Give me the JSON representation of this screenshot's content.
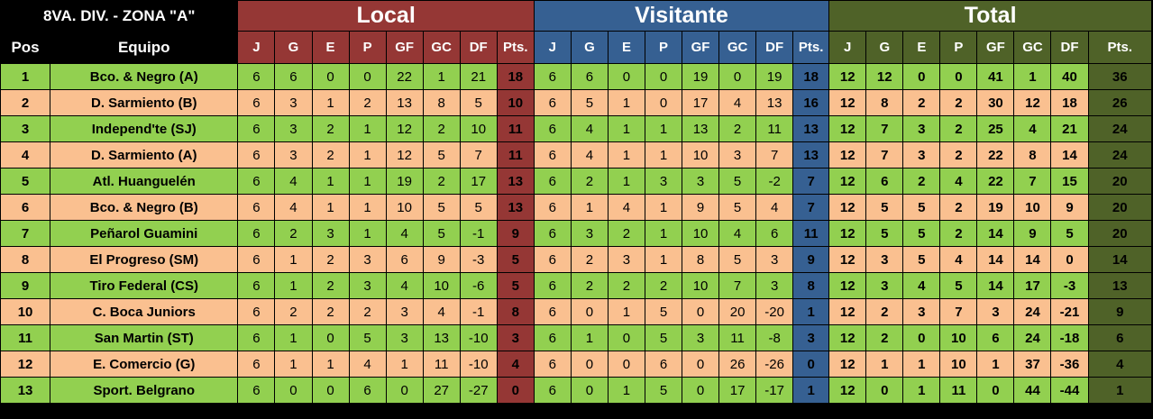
{
  "title": "8VA. DIV. - ZONA \"A\"",
  "groups": {
    "local": "Local",
    "visitante": "Visitante",
    "total": "Total"
  },
  "headers": {
    "pos": "Pos",
    "equipo": "Equipo",
    "stats": [
      "J",
      "G",
      "E",
      "P",
      "GF",
      "GC",
      "DF",
      "Pts."
    ]
  },
  "colors": {
    "local": "#953735",
    "visitante": "#366092",
    "total": "#4f6228",
    "row_green": "#92d050",
    "row_orange": "#fac090"
  },
  "rows": [
    {
      "pos": "1",
      "team": "Bco. & Negro (A)",
      "local": [
        "6",
        "6",
        "0",
        "0",
        "22",
        "1",
        "21",
        "18"
      ],
      "visitante": [
        "6",
        "6",
        "0",
        "0",
        "19",
        "0",
        "19",
        "18"
      ],
      "total": [
        "12",
        "12",
        "0",
        "0",
        "41",
        "1",
        "40",
        "36"
      ]
    },
    {
      "pos": "2",
      "team": "D. Sarmiento (B)",
      "local": [
        "6",
        "3",
        "1",
        "2",
        "13",
        "8",
        "5",
        "10"
      ],
      "visitante": [
        "6",
        "5",
        "1",
        "0",
        "17",
        "4",
        "13",
        "16"
      ],
      "total": [
        "12",
        "8",
        "2",
        "2",
        "30",
        "12",
        "18",
        "26"
      ]
    },
    {
      "pos": "3",
      "team": "Independ'te (SJ)",
      "local": [
        "6",
        "3",
        "2",
        "1",
        "12",
        "2",
        "10",
        "11"
      ],
      "visitante": [
        "6",
        "4",
        "1",
        "1",
        "13",
        "2",
        "11",
        "13"
      ],
      "total": [
        "12",
        "7",
        "3",
        "2",
        "25",
        "4",
        "21",
        "24"
      ]
    },
    {
      "pos": "4",
      "team": "D. Sarmiento (A)",
      "local": [
        "6",
        "3",
        "2",
        "1",
        "12",
        "5",
        "7",
        "11"
      ],
      "visitante": [
        "6",
        "4",
        "1",
        "1",
        "10",
        "3",
        "7",
        "13"
      ],
      "total": [
        "12",
        "7",
        "3",
        "2",
        "22",
        "8",
        "14",
        "24"
      ]
    },
    {
      "pos": "5",
      "team": "Atl. Huanguelén",
      "local": [
        "6",
        "4",
        "1",
        "1",
        "19",
        "2",
        "17",
        "13"
      ],
      "visitante": [
        "6",
        "2",
        "1",
        "3",
        "3",
        "5",
        "-2",
        "7"
      ],
      "total": [
        "12",
        "6",
        "2",
        "4",
        "22",
        "7",
        "15",
        "20"
      ]
    },
    {
      "pos": "6",
      "team": "Bco. & Negro (B)",
      "local": [
        "6",
        "4",
        "1",
        "1",
        "10",
        "5",
        "5",
        "13"
      ],
      "visitante": [
        "6",
        "1",
        "4",
        "1",
        "9",
        "5",
        "4",
        "7"
      ],
      "total": [
        "12",
        "5",
        "5",
        "2",
        "19",
        "10",
        "9",
        "20"
      ]
    },
    {
      "pos": "7",
      "team": "Peñarol Guamini",
      "local": [
        "6",
        "2",
        "3",
        "1",
        "4",
        "5",
        "-1",
        "9"
      ],
      "visitante": [
        "6",
        "3",
        "2",
        "1",
        "10",
        "4",
        "6",
        "11"
      ],
      "total": [
        "12",
        "5",
        "5",
        "2",
        "14",
        "9",
        "5",
        "20"
      ]
    },
    {
      "pos": "8",
      "team": "El Progreso (SM)",
      "local": [
        "6",
        "1",
        "2",
        "3",
        "6",
        "9",
        "-3",
        "5"
      ],
      "visitante": [
        "6",
        "2",
        "3",
        "1",
        "8",
        "5",
        "3",
        "9"
      ],
      "total": [
        "12",
        "3",
        "5",
        "4",
        "14",
        "14",
        "0",
        "14"
      ]
    },
    {
      "pos": "9",
      "team": "Tiro Federal (CS)",
      "local": [
        "6",
        "1",
        "2",
        "3",
        "4",
        "10",
        "-6",
        "5"
      ],
      "visitante": [
        "6",
        "2",
        "2",
        "2",
        "10",
        "7",
        "3",
        "8"
      ],
      "total": [
        "12",
        "3",
        "4",
        "5",
        "14",
        "17",
        "-3",
        "13"
      ]
    },
    {
      "pos": "10",
      "team": "C. Boca Juniors",
      "local": [
        "6",
        "2",
        "2",
        "2",
        "3",
        "4",
        "-1",
        "8"
      ],
      "visitante": [
        "6",
        "0",
        "1",
        "5",
        "0",
        "20",
        "-20",
        "1"
      ],
      "total": [
        "12",
        "2",
        "3",
        "7",
        "3",
        "24",
        "-21",
        "9"
      ]
    },
    {
      "pos": "11",
      "team": "San Martin (ST)",
      "local": [
        "6",
        "1",
        "0",
        "5",
        "3",
        "13",
        "-10",
        "3"
      ],
      "visitante": [
        "6",
        "1",
        "0",
        "5",
        "3",
        "11",
        "-8",
        "3"
      ],
      "total": [
        "12",
        "2",
        "0",
        "10",
        "6",
        "24",
        "-18",
        "6"
      ]
    },
    {
      "pos": "12",
      "team": "E. Comercio (G)",
      "local": [
        "6",
        "1",
        "1",
        "4",
        "1",
        "11",
        "-10",
        "4"
      ],
      "visitante": [
        "6",
        "0",
        "0",
        "6",
        "0",
        "26",
        "-26",
        "0"
      ],
      "total": [
        "12",
        "1",
        "1",
        "10",
        "1",
        "37",
        "-36",
        "4"
      ]
    },
    {
      "pos": "13",
      "team": "Sport. Belgrano",
      "local": [
        "6",
        "0",
        "0",
        "6",
        "0",
        "27",
        "-27",
        "0"
      ],
      "visitante": [
        "6",
        "0",
        "1",
        "5",
        "0",
        "17",
        "-17",
        "1"
      ],
      "total": [
        "12",
        "0",
        "1",
        "11",
        "0",
        "44",
        "-44",
        "1"
      ]
    }
  ]
}
